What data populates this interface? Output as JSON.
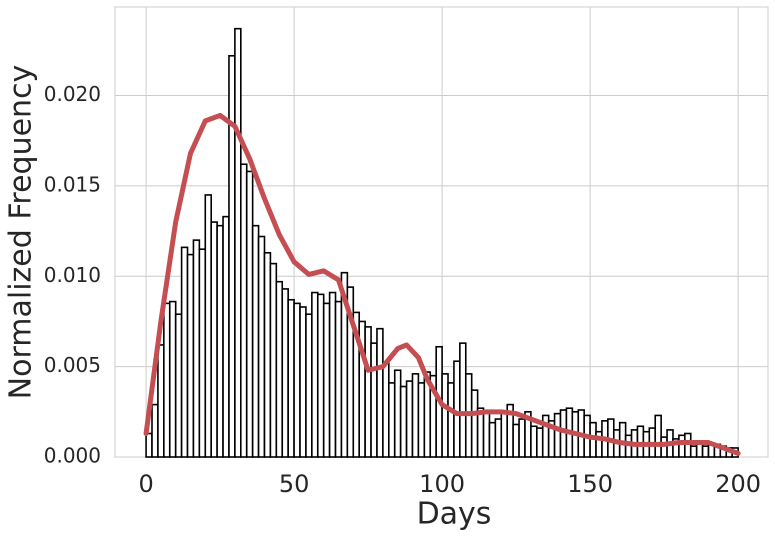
{
  "chart_data": {
    "type": "histogram",
    "xlabel": "Days",
    "ylabel": "Normalized Frequency",
    "bins": [
      0,
      2,
      4,
      6,
      8,
      10,
      12,
      14,
      16,
      18,
      20,
      22,
      24,
      26,
      28,
      30,
      32,
      34,
      36,
      38,
      40,
      42,
      44,
      46,
      48,
      50,
      52,
      54,
      56,
      58,
      60,
      62,
      64,
      66,
      68,
      70,
      72,
      74,
      76,
      78,
      80,
      82,
      84,
      86,
      88,
      90,
      92,
      94,
      96,
      98,
      100,
      102,
      104,
      106,
      108,
      110,
      112,
      114,
      116,
      118,
      120,
      122,
      124,
      126,
      128,
      130,
      132,
      134,
      136,
      138,
      140,
      142,
      144,
      146,
      148,
      150,
      152,
      154,
      156,
      158,
      160,
      162,
      164,
      166,
      168,
      170,
      172,
      174,
      176,
      178,
      180,
      182,
      184,
      186,
      188,
      190,
      192,
      194,
      196,
      198,
      200
    ],
    "counts": [
      0.0013,
      0.0029,
      0.0062,
      0.0085,
      0.0086,
      0.0079,
      0.0116,
      0.0112,
      0.012,
      0.0115,
      0.0145,
      0.013,
      0.0128,
      0.0133,
      0.0222,
      0.0237,
      0.0162,
      0.0158,
      0.0128,
      0.0122,
      0.0113,
      0.0107,
      0.0097,
      0.0093,
      0.0087,
      0.0085,
      0.0083,
      0.0079,
      0.0091,
      0.009,
      0.0085,
      0.0091,
      0.0086,
      0.0102,
      0.0094,
      0.008,
      0.0075,
      0.0072,
      0.0063,
      0.0071,
      0.0052,
      0.0041,
      0.0048,
      0.0039,
      0.0042,
      0.0046,
      0.0041,
      0.0047,
      0.0045,
      0.0061,
      0.0046,
      0.0041,
      0.0053,
      0.0063,
      0.0046,
      0.0037,
      0.0027,
      0.0025,
      0.0019,
      0.0021,
      0.0025,
      0.0029,
      0.0018,
      0.0021,
      0.0025,
      0.0017,
      0.0016,
      0.0023,
      0.002,
      0.0024,
      0.0026,
      0.0027,
      0.0025,
      0.0026,
      0.0023,
      0.0019,
      0.0014,
      0.002,
      0.0021,
      0.0015,
      0.0019,
      0.0012,
      0.0015,
      0.0017,
      0.0014,
      0.0016,
      0.0023,
      0.0011,
      0.0015,
      0.001,
      0.0012,
      0.0013,
      0.0006,
      0.0008,
      0.0006,
      0.0007,
      0.0007,
      0.0006,
      0.0005,
      0.0005
    ],
    "bar_color": "#ffffff",
    "edge_color": "#000000",
    "line": {
      "color": "#c44e52",
      "x": [
        0,
        5,
        10,
        15,
        20,
        25,
        30,
        35,
        40,
        45,
        50,
        55,
        60,
        65,
        70,
        75,
        80,
        85,
        88,
        92,
        95,
        100,
        105,
        110,
        115,
        120,
        125,
        130,
        135,
        140,
        145,
        150,
        155,
        160,
        165,
        170,
        175,
        180,
        185,
        190,
        195,
        200
      ],
      "values": [
        0.0013,
        0.0075,
        0.013,
        0.0168,
        0.0186,
        0.0189,
        0.0183,
        0.0165,
        0.0143,
        0.0123,
        0.0108,
        0.0101,
        0.0103,
        0.0098,
        0.0073,
        0.0048,
        0.005,
        0.006,
        0.0062,
        0.0055,
        0.0043,
        0.0029,
        0.0024,
        0.0024,
        0.0025,
        0.0025,
        0.0024,
        0.0021,
        0.0018,
        0.0015,
        0.0013,
        0.0011,
        0.001,
        0.0008,
        0.0007,
        0.0007,
        0.0007,
        0.0008,
        0.0008,
        0.0008,
        0.0005,
        0.0002
      ]
    },
    "xlim": [
      -10.5,
      210.1
    ],
    "ylim": [
      0,
      0.0249
    ],
    "xticks": [
      0,
      50,
      100,
      150,
      200
    ],
    "yticks": [
      {
        "value": 0,
        "label": "0.000"
      },
      {
        "value": 0.005,
        "label": "0.005"
      },
      {
        "value": 0.01,
        "label": "0.010"
      },
      {
        "value": 0.015,
        "label": "0.015"
      },
      {
        "value": 0.02,
        "label": "0.020"
      }
    ],
    "grid": true
  }
}
